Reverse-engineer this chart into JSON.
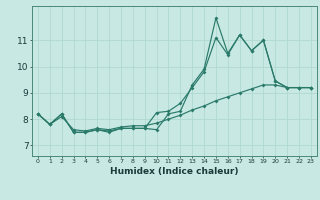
{
  "title": "",
  "xlabel": "Humidex (Indice chaleur)",
  "line_color": "#2a7a6a",
  "bg_color": "#c8e8e4",
  "grid_color": "#b0d8d0",
  "xmin": -0.5,
  "xmax": 23.5,
  "ymin": 6.6,
  "ymax": 12.3,
  "yticks": [
    7,
    8,
    9,
    10,
    11
  ],
  "xticks": [
    0,
    1,
    2,
    3,
    4,
    5,
    6,
    7,
    8,
    9,
    10,
    11,
    12,
    13,
    14,
    15,
    16,
    17,
    18,
    19,
    20,
    21,
    22,
    23
  ],
  "line1_x": [
    0,
    1,
    2,
    3,
    4,
    5,
    6,
    7,
    8,
    9,
    10,
    11,
    12,
    13,
    14,
    15,
    16,
    17,
    18,
    19,
    20,
    21,
    22,
    23
  ],
  "line1_y": [
    8.2,
    7.8,
    8.2,
    7.5,
    7.5,
    7.6,
    7.5,
    7.65,
    7.65,
    7.65,
    7.6,
    8.2,
    8.3,
    9.3,
    9.9,
    11.85,
    10.5,
    11.2,
    10.6,
    11.0,
    9.45,
    9.2,
    9.2,
    9.2
  ],
  "line2_x": [
    0,
    1,
    2,
    3,
    4,
    5,
    6,
    7,
    8,
    9,
    10,
    11,
    12,
    13,
    14,
    15,
    16,
    17,
    18,
    19,
    20,
    21,
    22,
    23
  ],
  "line2_y": [
    8.2,
    7.8,
    8.2,
    7.5,
    7.5,
    7.6,
    7.55,
    7.65,
    7.65,
    7.65,
    8.25,
    8.3,
    8.6,
    9.2,
    9.8,
    11.1,
    10.45,
    11.2,
    10.6,
    11.0,
    9.45,
    9.2,
    9.2,
    9.2
  ],
  "line3_x": [
    0,
    1,
    2,
    3,
    4,
    5,
    6,
    7,
    8,
    9,
    10,
    11,
    12,
    13,
    14,
    15,
    16,
    17,
    18,
    19,
    20,
    21,
    22,
    23
  ],
  "line3_y": [
    8.2,
    7.8,
    8.1,
    7.6,
    7.55,
    7.65,
    7.6,
    7.7,
    7.75,
    7.75,
    7.85,
    8.0,
    8.15,
    8.35,
    8.5,
    8.7,
    8.85,
    9.0,
    9.15,
    9.3,
    9.3,
    9.2,
    9.2,
    9.2
  ]
}
